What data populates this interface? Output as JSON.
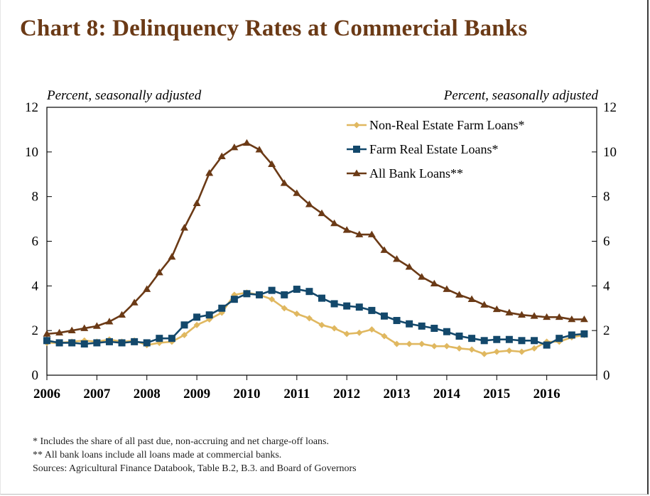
{
  "title": "Chart 8: Delinquency Rates at Commercial Banks",
  "left_unit": "Percent, seasonally adjusted",
  "right_unit": "Percent, seasonally adjusted",
  "notes": [
    "* Includes the share of all past due, non-accruing and net charge-off loans.",
    "** All bank loans include all loans made at commercial banks.",
    "Sources: Agricultural Finance Databook, Table B.2, B.3. and Board of Governors"
  ],
  "chart_data": {
    "type": "line",
    "title": "Chart 8: Delinquency Rates at Commercial Banks",
    "ylabel": "Percent, seasonally adjusted",
    "ylim": [
      0,
      12
    ],
    "xlim": [
      2006,
      2017
    ],
    "yticks": [
      "0",
      "2",
      "4",
      "6",
      "8",
      "10",
      "12"
    ],
    "xticks": [
      "2006",
      "2007",
      "2008",
      "2009",
      "2010",
      "2011",
      "2012",
      "2013",
      "2014",
      "2015",
      "2016"
    ],
    "x_start": 2006.0,
    "x_step": 0.25,
    "legend_position": "top-right",
    "series": [
      {
        "name": "Non-Real Estate Farm Loans*",
        "color": "#e0b860",
        "marker": "diamond",
        "values": [
          1.45,
          1.45,
          1.5,
          1.55,
          1.5,
          1.6,
          1.5,
          1.55,
          1.35,
          1.45,
          1.5,
          1.8,
          2.25,
          2.5,
          2.8,
          3.6,
          3.7,
          3.6,
          3.4,
          3.0,
          2.75,
          2.55,
          2.25,
          2.1,
          1.85,
          1.9,
          2.05,
          1.75,
          1.4,
          1.4,
          1.4,
          1.3,
          1.3,
          1.2,
          1.15,
          0.95,
          1.05,
          1.1,
          1.05,
          1.2,
          1.5,
          1.5,
          1.7,
          1.8
        ]
      },
      {
        "name": "Farm Real Estate Loans*",
        "color": "#13486b",
        "marker": "square",
        "values": [
          1.55,
          1.45,
          1.45,
          1.4,
          1.45,
          1.5,
          1.45,
          1.5,
          1.45,
          1.65,
          1.65,
          2.25,
          2.6,
          2.7,
          3.0,
          3.4,
          3.65,
          3.6,
          3.8,
          3.6,
          3.85,
          3.75,
          3.45,
          3.2,
          3.1,
          3.05,
          2.9,
          2.65,
          2.45,
          2.3,
          2.2,
          2.1,
          1.95,
          1.75,
          1.65,
          1.55,
          1.6,
          1.6,
          1.55,
          1.55,
          1.35,
          1.65,
          1.8,
          1.85
        ]
      },
      {
        "name": "All Bank Loans**",
        "color": "#6b3a16",
        "marker": "triangle",
        "values": [
          1.85,
          1.9,
          2.0,
          2.1,
          2.2,
          2.4,
          2.7,
          3.25,
          3.85,
          4.6,
          5.3,
          6.6,
          7.7,
          9.05,
          9.8,
          10.2,
          10.4,
          10.1,
          9.45,
          8.6,
          8.15,
          7.65,
          7.25,
          6.8,
          6.5,
          6.3,
          6.3,
          5.6,
          5.2,
          4.85,
          4.4,
          4.1,
          3.85,
          3.6,
          3.4,
          3.15,
          2.95,
          2.8,
          2.7,
          2.65,
          2.6,
          2.6,
          2.5,
          2.5
        ]
      }
    ]
  }
}
